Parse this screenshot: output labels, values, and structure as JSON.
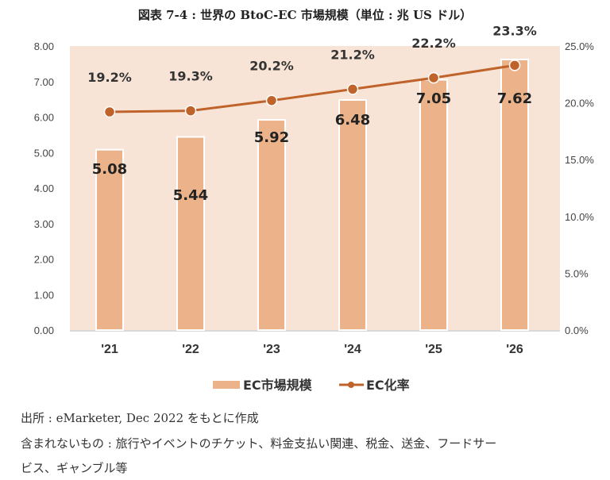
{
  "title": "図表 7-4 : 世界の BtoC-EC 市場規模（単位 : 兆 US ドル）",
  "chart_data": {
    "type": "bar+line",
    "categories": [
      "'21",
      "'22",
      "'23",
      "'24",
      "'25",
      "'26"
    ],
    "series": [
      {
        "name": "EC市場規模",
        "type": "bar",
        "axis": "left",
        "values": [
          5.08,
          5.44,
          5.92,
          6.48,
          7.05,
          7.62
        ],
        "labels": [
          "5.08",
          "5.44",
          "5.92",
          "6.48",
          "7.05",
          "7.62"
        ],
        "color": "#ecb38a"
      },
      {
        "name": "EC化率",
        "type": "line",
        "axis": "right",
        "values": [
          19.2,
          19.3,
          20.2,
          21.2,
          22.2,
          23.3
        ],
        "labels": [
          "19.2%",
          "19.3%",
          "20.2%",
          "21.2%",
          "22.2%",
          "23.3%"
        ],
        "color": "#c0632b"
      }
    ],
    "y_left": {
      "range": [
        0,
        8
      ],
      "ticks": [
        "0.00",
        "1.00",
        "2.00",
        "3.00",
        "4.00",
        "5.00",
        "6.00",
        "7.00",
        "8.00"
      ]
    },
    "y_right": {
      "range": [
        0,
        25
      ],
      "ticks": [
        "0.0%",
        "5.0%",
        "10.0%",
        "15.0%",
        "20.0%",
        "25.0%"
      ]
    },
    "plot_background": "#f8e4d6",
    "grid": false,
    "legend_position": "bottom"
  },
  "notes": {
    "source": "出所 : eMarketer, Dec 2022 をもとに作成",
    "excluded_line1": "含まれないもの : 旅行やイベントのチケット、料金支払い関連、税金、送金、フードサー",
    "excluded_line2": "ビス、ギャンブル等"
  }
}
